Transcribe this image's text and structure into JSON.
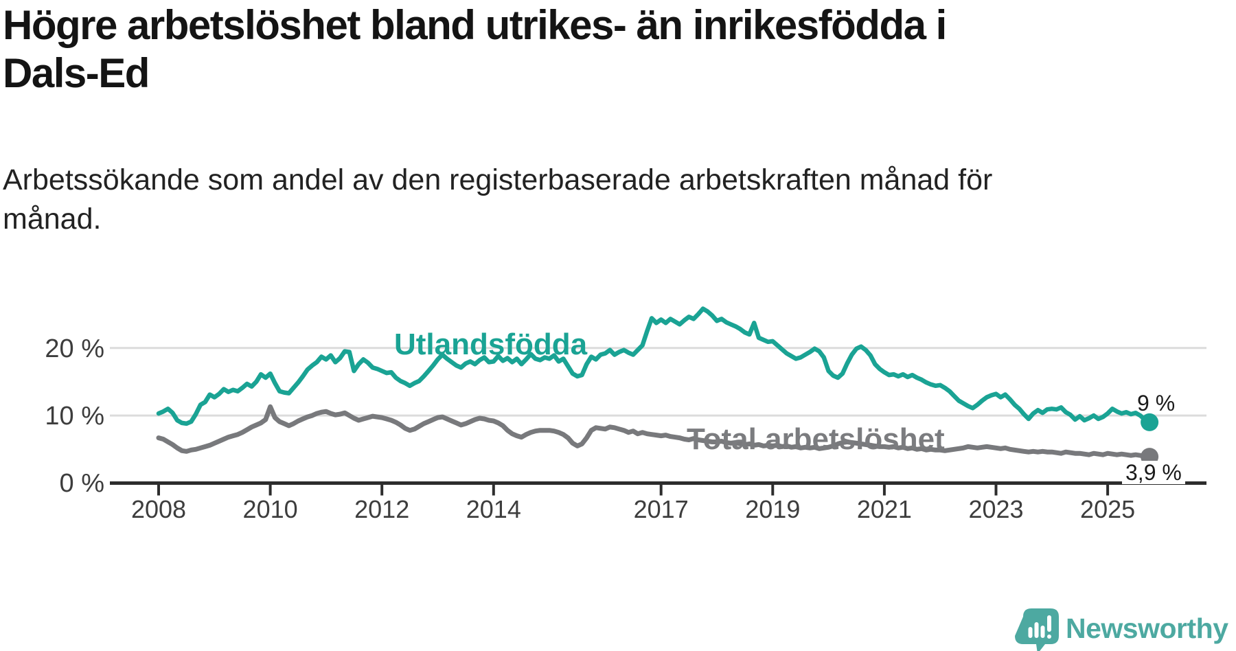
{
  "title": {
    "line1": "Högre arbetslöshet bland utrikes- än inrikesfödda i",
    "line2": "Dals-Ed"
  },
  "subtitle": {
    "line1": "Arbetssökande som andel av den registerbaserade arbetskraften månad för",
    "line2": "månad."
  },
  "chart_data": {
    "type": "line",
    "x_unit": "month",
    "x_start": "2008-01",
    "x_end": "2025-10",
    "x_tick_years": [
      2008,
      2010,
      2012,
      2014,
      2017,
      2019,
      2021,
      2023,
      2025
    ],
    "x_tick_labels": [
      "2008",
      "2010",
      "2012",
      "2014",
      "2017",
      "2019",
      "2021",
      "2023",
      "2025"
    ],
    "y_ticks": [
      0,
      10,
      20
    ],
    "y_tick_labels": [
      "0 %",
      "10 %",
      "20 %"
    ],
    "ylim": [
      0,
      27
    ],
    "grid": "horizontal",
    "legend_position": "inline-labels",
    "series": [
      {
        "name": "Utlandsfödda",
        "color": "#1AA394",
        "end_label": "9 %",
        "end_value": 9.0,
        "values": [
          10.3,
          10.6,
          11.0,
          10.4,
          9.3,
          8.9,
          8.8,
          9.1,
          10.2,
          11.6,
          12.0,
          13.1,
          12.7,
          13.2,
          13.9,
          13.5,
          13.8,
          13.6,
          14.1,
          14.7,
          14.3,
          15.0,
          16.1,
          15.6,
          16.2,
          14.8,
          13.6,
          13.4,
          13.3,
          14.1,
          14.9,
          15.8,
          16.8,
          17.4,
          17.9,
          18.7,
          18.3,
          18.9,
          17.9,
          18.5,
          19.5,
          19.4,
          16.6,
          17.6,
          18.3,
          17.8,
          17.1,
          16.9,
          16.6,
          16.3,
          16.4,
          15.6,
          15.1,
          14.8,
          14.4,
          14.8,
          15.1,
          15.8,
          16.6,
          17.4,
          18.3,
          19.0,
          18.4,
          17.9,
          17.4,
          17.1,
          17.7,
          18.0,
          17.6,
          18.2,
          18.6,
          17.9,
          18.0,
          18.8,
          18.1,
          18.5,
          17.9,
          18.4,
          17.6,
          18.3,
          19.1,
          18.4,
          18.2,
          18.6,
          18.4,
          18.9,
          18.0,
          18.4,
          17.3,
          16.2,
          15.8,
          16.0,
          17.6,
          18.7,
          18.3,
          19.0,
          19.2,
          19.7,
          19.0,
          19.4,
          19.7,
          19.3,
          19.0,
          19.7,
          20.4,
          22.5,
          24.4,
          23.7,
          24.2,
          23.7,
          24.3,
          23.9,
          23.5,
          24.1,
          24.6,
          24.3,
          25.0,
          25.8,
          25.4,
          24.8,
          24.0,
          24.3,
          23.8,
          23.5,
          23.2,
          22.8,
          22.3,
          22.0,
          23.7,
          21.5,
          21.2,
          20.9,
          21.0,
          20.4,
          19.8,
          19.2,
          18.8,
          18.4,
          18.6,
          19.0,
          19.4,
          19.9,
          19.5,
          18.6,
          16.6,
          15.9,
          15.6,
          16.2,
          17.7,
          19.0,
          19.9,
          20.2,
          19.7,
          18.9,
          17.6,
          16.9,
          16.4,
          16.0,
          16.1,
          15.8,
          16.1,
          15.7,
          16.0,
          15.6,
          15.3,
          14.9,
          14.6,
          14.4,
          14.5,
          14.1,
          13.6,
          12.9,
          12.2,
          11.8,
          11.4,
          11.1,
          11.6,
          12.2,
          12.7,
          13.0,
          13.2,
          12.7,
          13.1,
          12.4,
          11.6,
          11.0,
          10.2,
          9.5,
          10.3,
          10.8,
          10.4,
          10.9,
          11.0,
          10.9,
          11.2,
          10.5,
          10.1,
          9.4,
          9.9,
          9.3,
          9.6,
          10.0,
          9.5,
          9.8,
          10.3,
          11.0,
          10.6,
          10.3,
          10.5,
          10.2,
          10.4,
          10.0,
          9.4,
          9.0
        ]
      },
      {
        "name": "Total arbetslöshet",
        "color": "#78797C",
        "end_label": "3,9 %",
        "end_value": 3.9,
        "values": [
          6.7,
          6.5,
          6.1,
          5.7,
          5.2,
          4.8,
          4.7,
          4.9,
          5.0,
          5.2,
          5.4,
          5.6,
          5.9,
          6.2,
          6.5,
          6.8,
          7.0,
          7.2,
          7.5,
          7.9,
          8.3,
          8.6,
          8.9,
          9.4,
          11.3,
          9.7,
          9.1,
          8.8,
          8.5,
          8.8,
          9.2,
          9.5,
          9.8,
          10.0,
          10.3,
          10.5,
          10.6,
          10.3,
          10.1,
          10.2,
          10.4,
          10.0,
          9.6,
          9.3,
          9.5,
          9.7,
          9.9,
          9.8,
          9.7,
          9.5,
          9.3,
          9.0,
          8.6,
          8.1,
          7.8,
          8.0,
          8.4,
          8.8,
          9.1,
          9.4,
          9.7,
          9.8,
          9.5,
          9.2,
          8.9,
          8.6,
          8.8,
          9.1,
          9.4,
          9.6,
          9.5,
          9.3,
          9.2,
          8.9,
          8.5,
          7.8,
          7.3,
          7.0,
          6.8,
          7.2,
          7.5,
          7.7,
          7.8,
          7.8,
          7.8,
          7.7,
          7.5,
          7.2,
          6.7,
          5.9,
          5.5,
          5.8,
          6.7,
          7.8,
          8.2,
          8.1,
          8.0,
          8.3,
          8.2,
          8.0,
          7.8,
          7.5,
          7.7,
          7.3,
          7.5,
          7.3,
          7.2,
          7.1,
          7.0,
          7.1,
          6.9,
          6.8,
          6.7,
          6.5,
          6.4,
          6.6,
          6.4,
          6.3,
          6.2,
          6.1,
          6.1,
          6.2,
          6.0,
          5.9,
          6.0,
          5.8,
          5.7,
          5.8,
          5.6,
          5.7,
          5.5,
          5.6,
          5.5,
          5.6,
          5.4,
          5.5,
          5.3,
          5.4,
          5.2,
          5.3,
          5.2,
          5.3,
          5.1,
          5.2,
          5.3,
          5.5,
          5.8,
          6.0,
          6.1,
          6.0,
          5.9,
          5.8,
          5.7,
          5.6,
          5.5,
          5.4,
          5.4,
          5.3,
          5.4,
          5.2,
          5.3,
          5.1,
          5.2,
          5.0,
          5.1,
          4.9,
          5.0,
          4.9,
          4.9,
          4.8,
          4.9,
          5.0,
          5.1,
          5.2,
          5.4,
          5.3,
          5.2,
          5.3,
          5.4,
          5.3,
          5.2,
          5.1,
          5.2,
          5.0,
          4.9,
          4.8,
          4.7,
          4.6,
          4.7,
          4.6,
          4.7,
          4.6,
          4.6,
          4.5,
          4.4,
          4.6,
          4.5,
          4.4,
          4.4,
          4.3,
          4.2,
          4.4,
          4.3,
          4.2,
          4.4,
          4.3,
          4.2,
          4.3,
          4.2,
          4.1,
          4.2,
          4.1,
          4.0,
          3.9
        ]
      }
    ]
  },
  "colors": {
    "accent_teal": "#1AA394",
    "series_gray": "#78797C",
    "grid": "#DCDCDC",
    "axis": "#2D2D2D",
    "text": "#141414",
    "logo_teal": "#4DA9A1"
  },
  "branding": {
    "name": "Newsworthy"
  }
}
